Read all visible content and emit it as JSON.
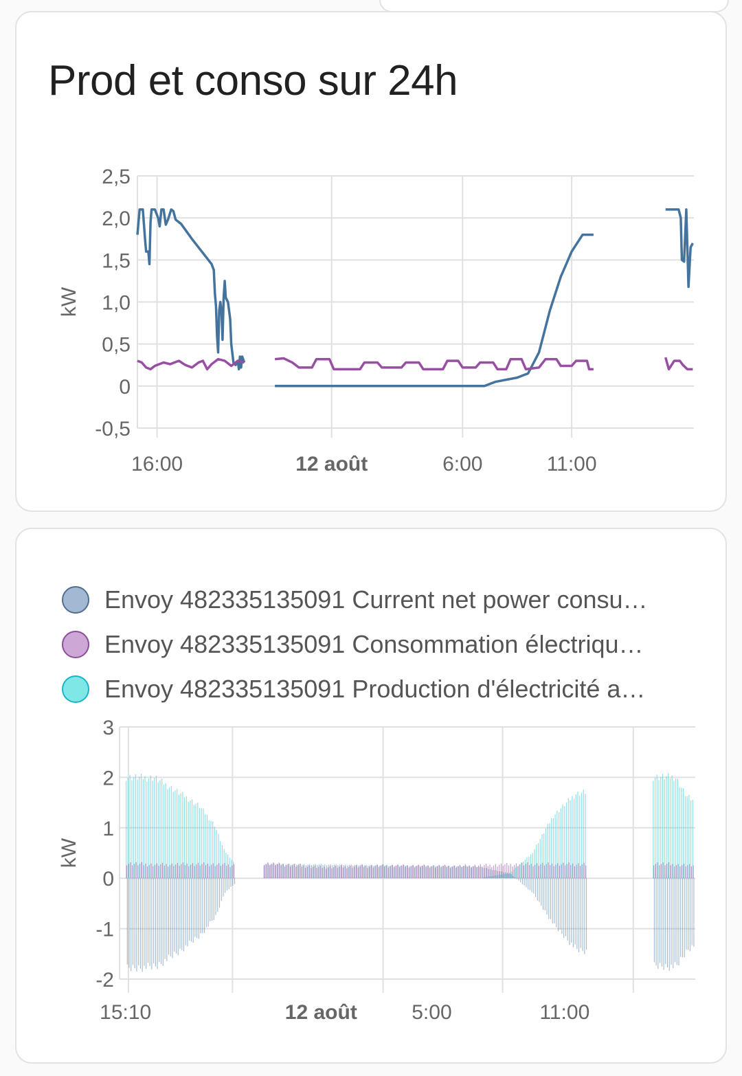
{
  "card1": {
    "title": "Prod et conso sur 24h"
  },
  "card2": {
    "legend": [
      {
        "label": "Envoy 482335135091 Current net power consu…",
        "color": "#a3b9d3",
        "border": "#4f6f91"
      },
      {
        "label": "Envoy 482335135091 Consommation électriqu…",
        "color": "#cda7d6",
        "border": "#8e4d9a"
      },
      {
        "label": "Envoy 482335135091 Production d'électricité a…",
        "color": "#7fe7e6",
        "border": "#17b6c4"
      }
    ]
  },
  "chart_data": [
    {
      "type": "line",
      "title": "Prod et conso sur 24h",
      "ylabel": "kW",
      "ylim": [
        -0.5,
        2.5
      ],
      "yticks": [
        "2,5",
        "2,0",
        "1,5",
        "1,0",
        "0,5",
        "0",
        "-0,5"
      ],
      "xticks": [
        {
          "label": "16:00",
          "h": 16,
          "bold": false
        },
        {
          "label": "12 août",
          "h": 24,
          "bold": true
        },
        {
          "label": "6:00",
          "h": 30,
          "bold": false
        },
        {
          "label": "11:00",
          "h": 35,
          "bold": false
        }
      ],
      "x_unit": "hours since 11 Aug 00:00",
      "grid": true,
      "series": [
        {
          "color": "#44739e",
          "segments": [
            [
              [
                15.1,
                1.8
              ],
              [
                15.2,
                2.1
              ],
              [
                15.35,
                2.1
              ],
              [
                15.45,
                1.75
              ],
              [
                15.5,
                1.6
              ],
              [
                15.6,
                1.6
              ],
              [
                15.65,
                1.45
              ],
              [
                15.7,
                1.95
              ],
              [
                15.75,
                2.1
              ],
              [
                15.9,
                2.1
              ],
              [
                16.05,
                2.0
              ],
              [
                16.12,
                1.9
              ],
              [
                16.2,
                2.1
              ],
              [
                16.3,
                2.1
              ],
              [
                16.4,
                1.92
              ],
              [
                16.5,
                1.98
              ],
              [
                16.65,
                2.1
              ],
              [
                16.75,
                2.08
              ],
              [
                16.85,
                1.98
              ],
              [
                17.1,
                1.93
              ],
              [
                17.6,
                1.75
              ],
              [
                18.2,
                1.55
              ],
              [
                18.5,
                1.45
              ],
              [
                18.6,
                1.38
              ],
              [
                18.65,
                1.1
              ],
              [
                18.7,
                0.95
              ],
              [
                18.75,
                0.6
              ],
              [
                18.8,
                0.4
              ],
              [
                18.85,
                0.9
              ],
              [
                18.9,
                1.0
              ],
              [
                18.95,
                0.9
              ],
              [
                19.0,
                0.55
              ],
              [
                19.05,
                1.05
              ],
              [
                19.1,
                1.25
              ],
              [
                19.15,
                1.05
              ],
              [
                19.25,
                1.0
              ],
              [
                19.35,
                0.8
              ],
              [
                19.4,
                0.5
              ],
              [
                19.5,
                0.28
              ],
              [
                19.6,
                0.25
              ],
              [
                19.7,
                0.3
              ],
              [
                19.75,
                0.2
              ],
              [
                19.8,
                0.35
              ],
              [
                19.85,
                0.22
              ],
              [
                19.9,
                0.35
              ],
              [
                20.0,
                0.28
              ]
            ],
            [
              [
                21.4,
                0.0
              ],
              [
                27.5,
                0.0
              ],
              [
                31.0,
                0.0
              ],
              [
                31.5,
                0.05
              ],
              [
                32.5,
                0.1
              ],
              [
                33.0,
                0.15
              ],
              [
                33.5,
                0.4
              ],
              [
                34.0,
                0.9
              ],
              [
                34.5,
                1.3
              ],
              [
                35.0,
                1.6
              ],
              [
                35.5,
                1.8
              ],
              [
                36.0,
                1.8
              ]
            ],
            [
              [
                39.3,
                2.1
              ],
              [
                39.9,
                2.1
              ],
              [
                40.0,
                2.0
              ],
              [
                40.05,
                1.5
              ],
              [
                40.15,
                1.48
              ],
              [
                40.25,
                2.1
              ],
              [
                40.3,
                1.65
              ],
              [
                40.35,
                1.18
              ],
              [
                40.45,
                1.65
              ],
              [
                40.55,
                1.7
              ]
            ]
          ]
        },
        {
          "color": "#984ea3",
          "segments": [
            [
              [
                15.1,
                0.3
              ],
              [
                15.3,
                0.28
              ],
              [
                15.5,
                0.22
              ],
              [
                15.7,
                0.2
              ],
              [
                15.9,
                0.24
              ],
              [
                16.1,
                0.26
              ],
              [
                16.3,
                0.28
              ],
              [
                16.6,
                0.26
              ],
              [
                17.0,
                0.3
              ],
              [
                17.3,
                0.25
              ],
              [
                17.6,
                0.22
              ],
              [
                17.9,
                0.28
              ],
              [
                18.1,
                0.3
              ],
              [
                18.3,
                0.2
              ],
              [
                18.5,
                0.26
              ],
              [
                18.8,
                0.32
              ],
              [
                19.1,
                0.3
              ],
              [
                19.4,
                0.24
              ],
              [
                19.7,
                0.3
              ],
              [
                20.0,
                0.28
              ]
            ],
            [
              [
                21.4,
                0.32
              ],
              [
                21.8,
                0.33
              ],
              [
                22.2,
                0.28
              ],
              [
                22.5,
                0.22
              ],
              [
                23.1,
                0.22
              ],
              [
                23.3,
                0.32
              ],
              [
                23.9,
                0.32
              ],
              [
                24.1,
                0.2
              ],
              [
                25.3,
                0.2
              ],
              [
                25.5,
                0.28
              ],
              [
                26.1,
                0.28
              ],
              [
                26.3,
                0.22
              ],
              [
                27.2,
                0.22
              ],
              [
                27.4,
                0.28
              ],
              [
                28.0,
                0.28
              ],
              [
                28.2,
                0.2
              ],
              [
                29.1,
                0.2
              ],
              [
                29.3,
                0.3
              ],
              [
                29.8,
                0.3
              ],
              [
                30.0,
                0.22
              ],
              [
                30.6,
                0.22
              ],
              [
                30.8,
                0.28
              ],
              [
                31.4,
                0.28
              ],
              [
                31.6,
                0.2
              ],
              [
                32.0,
                0.2
              ],
              [
                32.2,
                0.32
              ],
              [
                32.7,
                0.32
              ],
              [
                32.9,
                0.2
              ],
              [
                33.5,
                0.22
              ],
              [
                33.8,
                0.32
              ],
              [
                34.3,
                0.32
              ],
              [
                34.5,
                0.24
              ],
              [
                35.0,
                0.24
              ],
              [
                35.2,
                0.3
              ],
              [
                35.7,
                0.3
              ],
              [
                35.8,
                0.2
              ],
              [
                36.0,
                0.2
              ]
            ],
            [
              [
                39.3,
                0.34
              ],
              [
                39.45,
                0.2
              ],
              [
                39.7,
                0.3
              ],
              [
                39.95,
                0.3
              ],
              [
                40.1,
                0.25
              ],
              [
                40.3,
                0.2
              ],
              [
                40.55,
                0.2
              ]
            ]
          ]
        }
      ]
    },
    {
      "type": "bar",
      "ylabel": "kW",
      "ylim": [
        -2,
        3
      ],
      "yticks": [
        "3",
        "2",
        "1",
        "0",
        "-1",
        "-2"
      ],
      "xticks": [
        {
          "label": "15:10",
          "h": 15.17,
          "bold": false
        },
        {
          "label": "12 août",
          "h": 24,
          "bold": true
        },
        {
          "label": "5:00",
          "h": 29,
          "bold": false
        },
        {
          "label": "11:00",
          "h": 35,
          "bold": false
        }
      ],
      "x_unit": "hours since 11 Aug 00:00",
      "grid": true,
      "series": [
        {
          "name": "Envoy 482335135091 Current net power consu…",
          "color": "#44739e"
        },
        {
          "name": "Envoy 482335135091 Consommation électriqu…",
          "color": "#984ea3"
        },
        {
          "name": "Envoy 482335135091 Production d'électricité a…",
          "color": "#37c8d0"
        }
      ],
      "production_profile": [
        [
          [
            15.2,
            2.1
          ],
          [
            16.5,
            2.08
          ],
          [
            17.5,
            1.8
          ],
          [
            18.5,
            1.5
          ],
          [
            19.2,
            1.1
          ],
          [
            19.6,
            0.6
          ],
          [
            20.1,
            0.3
          ]
        ],
        [
          [
            21.4,
            0.0
          ],
          [
            31.0,
            0.0
          ],
          [
            32.5,
            0.1
          ],
          [
            33.5,
            0.5
          ],
          [
            34.5,
            1.3
          ],
          [
            35.5,
            1.75
          ],
          [
            36.0,
            1.8
          ]
        ],
        [
          [
            39.0,
            2.1
          ],
          [
            40.0,
            2.1
          ],
          [
            40.5,
            1.7
          ],
          [
            40.8,
            1.6
          ]
        ]
      ],
      "consumption_profile": [
        [
          [
            15.2,
            0.3
          ],
          [
            16.5,
            0.27
          ],
          [
            18.0,
            0.28
          ],
          [
            19.0,
            0.28
          ],
          [
            20.1,
            0.26
          ]
        ],
        [
          [
            21.4,
            0.3
          ],
          [
            24.0,
            0.22
          ],
          [
            27.0,
            0.25
          ],
          [
            30.0,
            0.24
          ],
          [
            33.0,
            0.28
          ],
          [
            36.0,
            0.28
          ]
        ],
        [
          [
            39.0,
            0.3
          ],
          [
            40.8,
            0.25
          ]
        ]
      ],
      "net_profile": [
        [
          [
            15.2,
            -1.9
          ],
          [
            16.5,
            -1.85
          ],
          [
            17.5,
            -1.55
          ],
          [
            18.5,
            -1.2
          ],
          [
            19.2,
            -0.8
          ],
          [
            19.6,
            -0.3
          ],
          [
            20.1,
            -0.1
          ]
        ],
        [
          [
            21.4,
            0.3
          ],
          [
            31.0,
            0.25
          ],
          [
            32.5,
            0.1
          ],
          [
            33.5,
            -0.3
          ],
          [
            34.5,
            -1.0
          ],
          [
            35.5,
            -1.5
          ],
          [
            36.0,
            -1.55
          ]
        ],
        [
          [
            39.0,
            -1.85
          ],
          [
            40.0,
            -1.85
          ],
          [
            40.5,
            -1.5
          ],
          [
            40.8,
            -1.4
          ]
        ]
      ]
    }
  ]
}
